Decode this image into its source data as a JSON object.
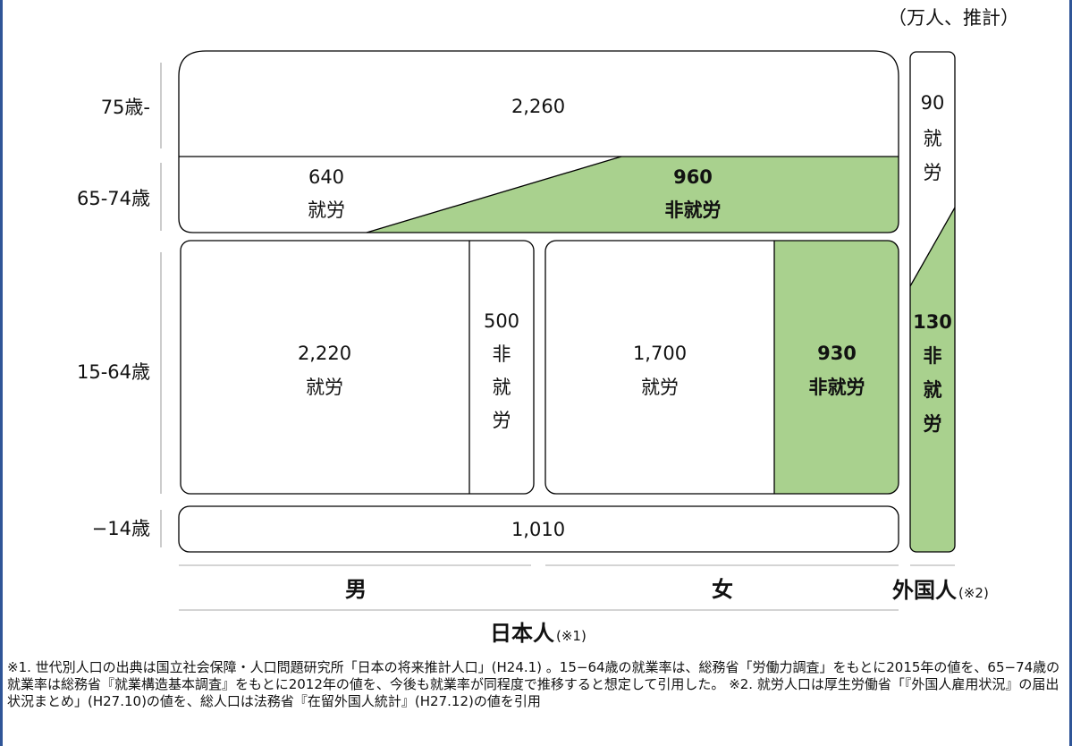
{
  "unit_note": "（万人、推計）",
  "age_labels": {
    "age_75_plus": "75歳-",
    "age_65_74": "65-74歳",
    "age_15_64": "15-64歳",
    "age_under_14": "−14歳"
  },
  "blocks": {
    "age_75_plus_value": "2,260",
    "age_65_74_employed_value": "640",
    "age_65_74_employed_label": "就労",
    "age_65_74_nonemployed_value": "960",
    "age_65_74_nonemployed_label": "非就労",
    "male_employed_value": "2,220",
    "male_employed_label": "就労",
    "male_nonemployed_value": "500",
    "male_nonemployed_label": [
      "非",
      "就",
      "労"
    ],
    "female_employed_value": "1,700",
    "female_employed_label": "就労",
    "female_nonemployed_value": "930",
    "female_nonemployed_label": "非就労",
    "age_under_14_value": "1,010",
    "foreign_employed_value": "90",
    "foreign_employed_label": [
      "就",
      "労"
    ],
    "foreign_nonemployed_value": "130",
    "foreign_nonemployed_label": [
      "非",
      "就",
      "労"
    ]
  },
  "categories": {
    "male": "男",
    "female": "女",
    "foreigner": "外国人",
    "foreigner_note": "(※2)",
    "japanese": "日本人",
    "japanese_note": "(※1)"
  },
  "colors": {
    "nonemployed_fill": "#a9d18e",
    "frame_border": "#2f5597",
    "box_stroke": "#000000"
  },
  "footnote": "※1. 世代別人口の出典は国立社会保障・人口問題研究所「日本の将来推計人口」(H24.1) 。15−64歳の就業率は、総務省「労働力調査」をもとに2015年の値を、65−74歳の就業率は総務省『就業構造基本調査』をもとに2012年の値を、今後も就業率が同程度で推移すると想定して引用した。 ※2. 就労人口は厚生労働省「『外国人雇用状況』の届出状況まとめ」(H27.10)の値を、総人口は法務省『在留外国人統計』(H27.12)の値を引用"
}
